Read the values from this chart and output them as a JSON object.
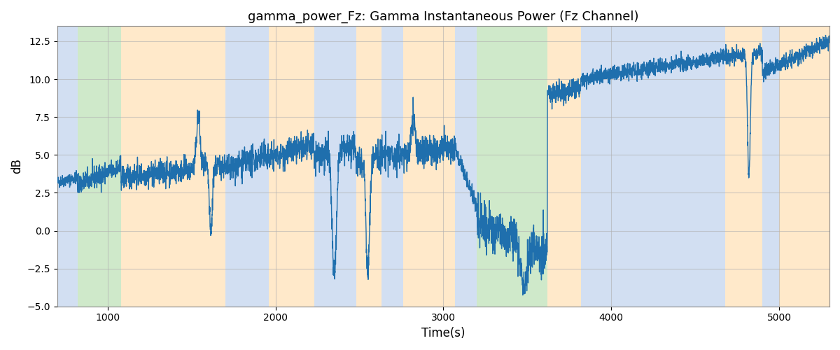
{
  "title": "gamma_power_Fz: Gamma Instantaneous Power (Fz Channel)",
  "xlabel": "Time(s)",
  "ylabel": "dB",
  "xlim": [
    700,
    5300
  ],
  "ylim": [
    -5.0,
    13.5
  ],
  "yticks": [
    -5.0,
    -2.5,
    0.0,
    2.5,
    5.0,
    7.5,
    10.0,
    12.5
  ],
  "xticks": [
    1000,
    2000,
    3000,
    4000,
    5000
  ],
  "background_bands": [
    {
      "xmin": 700,
      "xmax": 820,
      "color": "#aec6e8",
      "alpha": 0.55
    },
    {
      "xmin": 820,
      "xmax": 1080,
      "color": "#a8d8a0",
      "alpha": 0.55
    },
    {
      "xmin": 1080,
      "xmax": 1700,
      "color": "#ffd7a0",
      "alpha": 0.55
    },
    {
      "xmin": 1700,
      "xmax": 1960,
      "color": "#aec6e8",
      "alpha": 0.55
    },
    {
      "xmin": 1960,
      "xmax": 2230,
      "color": "#ffd7a0",
      "alpha": 0.55
    },
    {
      "xmin": 2230,
      "xmax": 2480,
      "color": "#aec6e8",
      "alpha": 0.55
    },
    {
      "xmin": 2480,
      "xmax": 2630,
      "color": "#ffd7a0",
      "alpha": 0.55
    },
    {
      "xmin": 2630,
      "xmax": 2760,
      "color": "#aec6e8",
      "alpha": 0.55
    },
    {
      "xmin": 2760,
      "xmax": 3070,
      "color": "#ffd7a0",
      "alpha": 0.55
    },
    {
      "xmin": 3070,
      "xmax": 3200,
      "color": "#aec6e8",
      "alpha": 0.55
    },
    {
      "xmin": 3200,
      "xmax": 3620,
      "color": "#a8d8a0",
      "alpha": 0.55
    },
    {
      "xmin": 3620,
      "xmax": 3820,
      "color": "#ffd7a0",
      "alpha": 0.55
    },
    {
      "xmin": 3820,
      "xmax": 4680,
      "color": "#aec6e8",
      "alpha": 0.55
    },
    {
      "xmin": 4680,
      "xmax": 4900,
      "color": "#ffd7a0",
      "alpha": 0.55
    },
    {
      "xmin": 4900,
      "xmax": 5000,
      "color": "#aec6e8",
      "alpha": 0.55
    },
    {
      "xmin": 5000,
      "xmax": 5300,
      "color": "#ffd7a0",
      "alpha": 0.55
    }
  ],
  "line_color": "#1f6fad",
  "line_width": 1.0,
  "grid_color": "#b0b0b0",
  "grid_alpha": 0.6,
  "bg_color": "#ffffff",
  "seed": 42
}
